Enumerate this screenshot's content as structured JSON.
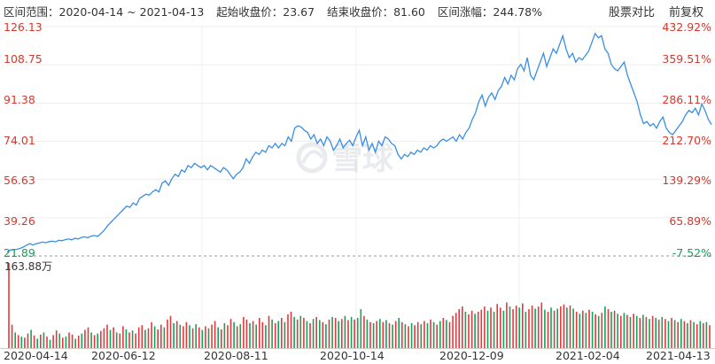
{
  "header": {
    "range_label": "区间范围：",
    "start_date": "2020-04-14",
    "tilde": "~",
    "end_date": "2021-04-13",
    "open_label": "起始收盘价：",
    "open_value": "23.67",
    "close_label": "结束收盘价：",
    "close_value": "81.60",
    "change_label": "区间涨幅：",
    "change_value": "244.78%"
  },
  "toolbar": {
    "compare_label": "股票对比",
    "adjust_label": "前复权"
  },
  "watermark": "雪球",
  "colors": {
    "line": "#3a8ee6",
    "up": "#e2393c",
    "down": "#18a157",
    "label_red": "#d9372b",
    "label_green": "#18a157"
  },
  "chart_data": {
    "type": "line",
    "price_axis": {
      "min": 21.89,
      "max": 126.13,
      "tick_labels": [
        "126.13",
        "108.75",
        "91.38",
        "74.01",
        "56.63",
        "39.26",
        "21.89"
      ],
      "tick_values": [
        126.13,
        108.75,
        91.38,
        74.01,
        56.63,
        39.26,
        21.89
      ]
    },
    "percent_axis": {
      "tick_labels": [
        "432.92%",
        "359.51%",
        "286.11%",
        "212.70%",
        "139.29%",
        "65.89%",
        "-7.52%"
      ]
    },
    "volume_label": "163.88万",
    "x_tick_labels": [
      "2020-04-14",
      "2020-06-12",
      "2020-08-11",
      "2020-10-14",
      "2020-12-09",
      "2021-02-04",
      "2021-04-13"
    ],
    "series": [
      {
        "values": [
          23.67,
          24.6,
          24.7,
          24.9,
          25.3,
          25.9,
          26.8,
          27.5,
          26.9,
          27.4,
          27.8,
          28.2,
          27.9,
          28.4,
          28.6,
          28.3,
          29.0,
          28.8,
          29.3,
          29.6,
          29.2,
          29.9,
          29.6,
          30.3,
          30.6,
          30.2,
          30.9,
          31.2,
          30.8,
          32.0,
          33.5,
          35.5,
          37.0,
          38.5,
          40.0,
          41.5,
          43.0,
          44.5,
          44.0,
          46.0,
          45.0,
          48.0,
          49.0,
          50.0,
          49.5,
          51.0,
          52.0,
          51.0,
          55.0,
          56.0,
          54.0,
          57.0,
          59.0,
          58.0,
          61.0,
          60.0,
          63.0,
          62.0,
          64.0,
          63.0,
          62.0,
          63.0,
          61.0,
          63.0,
          62.0,
          61.0,
          60.0,
          62.0,
          61.0,
          59.0,
          57.0,
          59.0,
          60.0,
          62.0,
          66.0,
          64.0,
          67.0,
          69.0,
          68.0,
          70.0,
          69.0,
          72.0,
          71.0,
          73.0,
          71.0,
          73.0,
          72.0,
          76.0,
          74.0,
          80.0,
          81.0,
          80.5,
          79.0,
          78.0,
          75.0,
          77.0,
          73.0,
          75.0,
          72.0,
          76.0,
          74.0,
          70.0,
          72.0,
          75.0,
          71.0,
          73.0,
          74.5,
          72.0,
          76.0,
          79.0,
          72.0,
          76.0,
          70.0,
          73.0,
          69.0,
          74.0,
          72.0,
          76.0,
          75.0,
          73.0,
          72.0,
          68.0,
          66.0,
          68.0,
          67.0,
          69.0,
          68.0,
          70.0,
          69.0,
          71.0,
          70.0,
          72.0,
          71.0,
          72.0,
          74.0,
          75.0,
          74.0,
          75.0,
          76.0,
          74.0,
          77.0,
          75.0,
          78.0,
          80.0,
          84.0,
          87.0,
          92.0,
          95.0,
          90.0,
          94.0,
          96.0,
          93.0,
          97.0,
          99.0,
          103.0,
          100.0,
          104.0,
          102.0,
          107.0,
          109.0,
          106.0,
          112.0,
          104.0,
          102.0,
          106.0,
          110.0,
          114.0,
          108.0,
          112.0,
          116.0,
          114.0,
          118.0,
          122.0,
          116.0,
          112.0,
          114.0,
          110.0,
          112.0,
          111.0,
          113.0,
          115.0,
          119.0,
          123.0,
          121.0,
          122.0,
          116.0,
          114.0,
          109.0,
          107.0,
          106.0,
          108.0,
          110.0,
          104.0,
          100.0,
          96.0,
          92.0,
          86.0,
          82.0,
          83.0,
          81.0,
          82.0,
          80.0,
          83.0,
          85.0,
          80.0,
          78.0,
          77.0,
          79.0,
          81.0,
          83.0,
          86.0,
          88.0,
          87.0,
          89.0,
          86.0,
          91.0,
          88.0,
          84.0,
          81.6
        ]
      }
    ],
    "volume": [
      [
        163.88,
        "up"
      ],
      [
        45,
        "up"
      ],
      [
        30,
        "down"
      ],
      [
        25,
        "up"
      ],
      [
        22,
        "down"
      ],
      [
        20,
        "up"
      ],
      [
        28,
        "up"
      ],
      [
        35,
        "down"
      ],
      [
        24,
        "up"
      ],
      [
        18,
        "down"
      ],
      [
        26,
        "up"
      ],
      [
        30,
        "down"
      ],
      [
        22,
        "up"
      ],
      [
        16,
        "down"
      ],
      [
        25,
        "up"
      ],
      [
        34,
        "up"
      ],
      [
        28,
        "down"
      ],
      [
        20,
        "up"
      ],
      [
        22,
        "down"
      ],
      [
        30,
        "up"
      ],
      [
        26,
        "up"
      ],
      [
        18,
        "down"
      ],
      [
        24,
        "up"
      ],
      [
        28,
        "down"
      ],
      [
        35,
        "up"
      ],
      [
        40,
        "up"
      ],
      [
        30,
        "down"
      ],
      [
        25,
        "up"
      ],
      [
        28,
        "down"
      ],
      [
        33,
        "up"
      ],
      [
        38,
        "up"
      ],
      [
        45,
        "up"
      ],
      [
        35,
        "down"
      ],
      [
        40,
        "up"
      ],
      [
        30,
        "down"
      ],
      [
        28,
        "up"
      ],
      [
        42,
        "up"
      ],
      [
        36,
        "down"
      ],
      [
        30,
        "up"
      ],
      [
        34,
        "down"
      ],
      [
        28,
        "up"
      ],
      [
        40,
        "up"
      ],
      [
        44,
        "up"
      ],
      [
        35,
        "down"
      ],
      [
        38,
        "up"
      ],
      [
        50,
        "up"
      ],
      [
        42,
        "down"
      ],
      [
        36,
        "up"
      ],
      [
        45,
        "up"
      ],
      [
        40,
        "down"
      ],
      [
        55,
        "up"
      ],
      [
        62,
        "up"
      ],
      [
        48,
        "down"
      ],
      [
        52,
        "up"
      ],
      [
        45,
        "down"
      ],
      [
        42,
        "up"
      ],
      [
        50,
        "up"
      ],
      [
        44,
        "down"
      ],
      [
        38,
        "up"
      ],
      [
        46,
        "down"
      ],
      [
        40,
        "up"
      ],
      [
        35,
        "down"
      ],
      [
        42,
        "up"
      ],
      [
        38,
        "down"
      ],
      [
        45,
        "up"
      ],
      [
        52,
        "up"
      ],
      [
        40,
        "down"
      ],
      [
        36,
        "up"
      ],
      [
        48,
        "down"
      ],
      [
        44,
        "up"
      ],
      [
        56,
        "up"
      ],
      [
        50,
        "down"
      ],
      [
        42,
        "up"
      ],
      [
        46,
        "down"
      ],
      [
        60,
        "up"
      ],
      [
        55,
        "up"
      ],
      [
        48,
        "down"
      ],
      [
        52,
        "up"
      ],
      [
        45,
        "down"
      ],
      [
        58,
        "up"
      ],
      [
        50,
        "up"
      ],
      [
        44,
        "down"
      ],
      [
        62,
        "up"
      ],
      [
        55,
        "down"
      ],
      [
        48,
        "up"
      ],
      [
        52,
        "down"
      ],
      [
        58,
        "up"
      ],
      [
        50,
        "down"
      ],
      [
        65,
        "up"
      ],
      [
        70,
        "up"
      ],
      [
        60,
        "down"
      ],
      [
        55,
        "up"
      ],
      [
        62,
        "down"
      ],
      [
        58,
        "up"
      ],
      [
        52,
        "down"
      ],
      [
        48,
        "up"
      ],
      [
        56,
        "down"
      ],
      [
        60,
        "up"
      ],
      [
        54,
        "down"
      ],
      [
        50,
        "up"
      ],
      [
        46,
        "down"
      ],
      [
        55,
        "up"
      ],
      [
        60,
        "down"
      ],
      [
        58,
        "up"
      ],
      [
        52,
        "down"
      ],
      [
        56,
        "up"
      ],
      [
        62,
        "down"
      ],
      [
        54,
        "up"
      ],
      [
        60,
        "down"
      ],
      [
        55,
        "up"
      ],
      [
        58,
        "down"
      ],
      [
        75,
        "down"
      ],
      [
        62,
        "up"
      ],
      [
        55,
        "down"
      ],
      [
        50,
        "up"
      ],
      [
        48,
        "down"
      ],
      [
        52,
        "up"
      ],
      [
        56,
        "down"
      ],
      [
        50,
        "up"
      ],
      [
        54,
        "down"
      ],
      [
        48,
        "up"
      ],
      [
        45,
        "down"
      ],
      [
        52,
        "up"
      ],
      [
        58,
        "down"
      ],
      [
        50,
        "up"
      ],
      [
        46,
        "down"
      ],
      [
        42,
        "up"
      ],
      [
        48,
        "down"
      ],
      [
        44,
        "up"
      ],
      [
        50,
        "up"
      ],
      [
        46,
        "down"
      ],
      [
        52,
        "up"
      ],
      [
        48,
        "down"
      ],
      [
        55,
        "up"
      ],
      [
        50,
        "down"
      ],
      [
        45,
        "up"
      ],
      [
        52,
        "down"
      ],
      [
        58,
        "up"
      ],
      [
        54,
        "down"
      ],
      [
        50,
        "up"
      ],
      [
        62,
        "up"
      ],
      [
        68,
        "up"
      ],
      [
        75,
        "up"
      ],
      [
        80,
        "up"
      ],
      [
        70,
        "down"
      ],
      [
        65,
        "up"
      ],
      [
        72,
        "up"
      ],
      [
        66,
        "down"
      ],
      [
        70,
        "up"
      ],
      [
        74,
        "up"
      ],
      [
        80,
        "up"
      ],
      [
        72,
        "down"
      ],
      [
        78,
        "up"
      ],
      [
        70,
        "down"
      ],
      [
        85,
        "up"
      ],
      [
        78,
        "up"
      ],
      [
        72,
        "down"
      ],
      [
        88,
        "up"
      ],
      [
        80,
        "down"
      ],
      [
        75,
        "up"
      ],
      [
        82,
        "up"
      ],
      [
        78,
        "down"
      ],
      [
        86,
        "up"
      ],
      [
        70,
        "down"
      ],
      [
        75,
        "up"
      ],
      [
        82,
        "up"
      ],
      [
        76,
        "down"
      ],
      [
        80,
        "up"
      ],
      [
        88,
        "up"
      ],
      [
        74,
        "down"
      ],
      [
        70,
        "up"
      ],
      [
        78,
        "down"
      ],
      [
        72,
        "up"
      ],
      [
        76,
        "down"
      ],
      [
        80,
        "up"
      ],
      [
        84,
        "up"
      ],
      [
        78,
        "down"
      ],
      [
        82,
        "up"
      ],
      [
        76,
        "down"
      ],
      [
        70,
        "up"
      ],
      [
        66,
        "down"
      ],
      [
        72,
        "up"
      ],
      [
        68,
        "down"
      ],
      [
        74,
        "up"
      ],
      [
        70,
        "down"
      ],
      [
        65,
        "up"
      ],
      [
        62,
        "down"
      ],
      [
        68,
        "up"
      ],
      [
        80,
        "down"
      ],
      [
        75,
        "up"
      ],
      [
        70,
        "down"
      ],
      [
        72,
        "up"
      ],
      [
        66,
        "down"
      ],
      [
        62,
        "up"
      ],
      [
        68,
        "down"
      ],
      [
        64,
        "up"
      ],
      [
        60,
        "down"
      ],
      [
        66,
        "up"
      ],
      [
        62,
        "down"
      ],
      [
        58,
        "up"
      ],
      [
        64,
        "down"
      ],
      [
        60,
        "up"
      ],
      [
        56,
        "down"
      ],
      [
        62,
        "up"
      ],
      [
        58,
        "down"
      ],
      [
        55,
        "up"
      ],
      [
        60,
        "down"
      ],
      [
        56,
        "up"
      ],
      [
        52,
        "down"
      ],
      [
        58,
        "up"
      ],
      [
        54,
        "down"
      ],
      [
        50,
        "up"
      ],
      [
        56,
        "down"
      ],
      [
        52,
        "up"
      ],
      [
        48,
        "down"
      ],
      [
        54,
        "up"
      ],
      [
        50,
        "down"
      ],
      [
        46,
        "up"
      ],
      [
        52,
        "down"
      ],
      [
        48,
        "up"
      ],
      [
        50,
        "down"
      ],
      [
        44,
        "up"
      ]
    ]
  }
}
